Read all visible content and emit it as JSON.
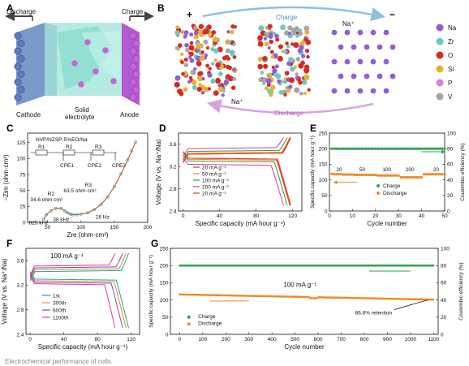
{
  "panels": {
    "A": {
      "letter": "A",
      "discharge": "Discharge",
      "charge": "Charge",
      "cathode": "Cathode",
      "solid": "Solid",
      "electrolyte": "electrolyte",
      "anode": "Anode"
    },
    "B": {
      "letter": "B",
      "plus": "+",
      "minus": "−",
      "charge": "Charge",
      "na_top": "Na⁺",
      "na_bottom": "Na⁺",
      "discharge": "Discharge",
      "legend": [
        {
          "label": "Na",
          "color": "#8e5fd6"
        },
        {
          "label": "Zr",
          "color": "#6cc8c8"
        },
        {
          "label": "O",
          "color": "#d82a1e"
        },
        {
          "label": "Si",
          "color": "#e8b22c"
        },
        {
          "label": "P",
          "color": "#e27ae0"
        },
        {
          "label": "V",
          "color": "#a6a6a6"
        }
      ]
    },
    "C": {
      "letter": "C",
      "title": "NVP/NZSP-5%EO/Na",
      "r1": "R1",
      "r2": "R2",
      "r3": "R3",
      "cpe1": "CPE1",
      "cpe2": "CPE2",
      "cpe3": "CPE3",
      "r2_label": "R2",
      "r2_value": "34.6 ohm·cm²",
      "r3_label": "R3",
      "r3_value": "63.5 ohm·cm²",
      "f1": "825 kHz",
      "f2": "38 kHz",
      "f3": "26 Hz",
      "ylabel": "−Zim (ohm·cm²)",
      "xlabel": "Zre (ohm·cm²)",
      "xticks": [
        "50",
        "100",
        "150",
        "200"
      ],
      "yticks": [
        "0",
        "25",
        "50",
        "75",
        "100",
        "125"
      ]
    },
    "D": {
      "letter": "D",
      "ylabel": "Voltage (V vs. Na⁺/Na)",
      "xlabel": "Specific capacity (mA hour g⁻¹)",
      "xticks": [
        "0",
        "40",
        "80",
        "120"
      ],
      "yticks": [
        "2.4",
        "2.8",
        "3.2",
        "3.6"
      ]
    },
    "E": {
      "letter": "E",
      "ylabel_left": "Specific capacity (mA hour g⁻¹)",
      "ylabel_right": "Coulombic efficiency (%)",
      "xlabel": "Cycle number",
      "charge": "Charge",
      "discharge": "Discharge",
      "xticks": [
        "0",
        "10",
        "20",
        "30",
        "40",
        "50"
      ],
      "yticks_left": [
        "0",
        "50",
        "100",
        "150",
        "200",
        "250"
      ],
      "yticks_right": [
        "0",
        "20",
        "40",
        "60",
        "80",
        "100"
      ],
      "rate_labels": [
        "20",
        "50",
        "100",
        "200",
        "20"
      ]
    },
    "F": {
      "letter": "F",
      "ylabel": "Voltage (V vs. Na⁺/Na)",
      "xlabel": "Specific capacity (mA hour g⁻¹)",
      "rate": "100 mA g⁻¹",
      "xticks": [
        "0",
        "40",
        "80",
        "120"
      ],
      "yticks": [
        "2.4",
        "2.8",
        "3.2",
        "3.6"
      ]
    },
    "G": {
      "letter": "G",
      "ylabel_left": "Specific capacity (mA hour g⁻¹)",
      "ylabel_right": "Coulombic efficiency (%)",
      "xlabel": "Cycle number",
      "rate": "100 mA g⁻¹",
      "retention": "86.8% retention",
      "charge": "Charge",
      "discharge": "Discharge",
      "xticks": [
        "0",
        "100",
        "200",
        "300",
        "400",
        "500",
        "600",
        "700",
        "800",
        "900",
        "1000",
        "1100"
      ],
      "yticks_left": [
        "0",
        "50",
        "100",
        "150",
        "200",
        "250"
      ],
      "yticks_right": [
        "0",
        "20",
        "40",
        "60",
        "80",
        "100"
      ]
    }
  },
  "caption": "Electrochemical performance of cells.",
  "chart_data": [
    {
      "type": "scatter",
      "panel": "C",
      "title": "NVP/NZSP-5%EO/Na",
      "xlabel": "Zre (ohm·cm²)",
      "ylabel": "−Zim (ohm·cm²)",
      "xlim": [
        20,
        200
      ],
      "ylim": [
        0,
        140
      ],
      "series": [
        {
          "values_x": [
            44,
            48,
            55,
            62,
            70,
            76,
            80,
            84,
            88,
            94,
            100,
            110,
            120,
            130,
            140,
            150,
            160,
            170,
            176,
            182
          ],
          "values_y": [
            5,
            12,
            18,
            22,
            22,
            18,
            15,
            13,
            12,
            12,
            13,
            15,
            20,
            28,
            40,
            56,
            76,
            98,
            112,
            126
          ]
        }
      ]
    },
    {
      "type": "line",
      "panel": "D",
      "xlabel": "Specific capacity (mA hour g⁻¹)",
      "ylabel": "Voltage (V vs. Na⁺/Na)",
      "xlim": [
        -5,
        130
      ],
      "ylim": [
        2.4,
        3.8
      ],
      "series": [
        {
          "name": "20 mA g⁻¹",
          "color": "#e0381e",
          "capacity": 118,
          "charge_v": 3.42,
          "discharge_v": 3.35
        },
        {
          "name": "50 mA g⁻¹",
          "color": "#f08a24",
          "capacity": 117,
          "charge_v": 3.44,
          "discharge_v": 3.33
        },
        {
          "name": "100 mA g⁻¹",
          "color": "#33a02c",
          "capacity": 114,
          "charge_v": 3.47,
          "discharge_v": 3.3
        },
        {
          "name": "200 mA g⁻¹",
          "color": "#d23cb4",
          "capacity": 110,
          "charge_v": 3.52,
          "discharge_v": 3.24
        },
        {
          "name": "20 mA g⁻¹",
          "color": "#e0381e",
          "capacity": 117,
          "charge_v": 3.42,
          "discharge_v": 3.35
        }
      ]
    },
    {
      "type": "scatter",
      "panel": "E",
      "xlabel": "Cycle number",
      "ylabel": "Specific capacity (mA hour g⁻¹)",
      "xlim": [
        0,
        50
      ],
      "ylim": [
        0,
        250
      ],
      "series": [
        {
          "name": "Charge",
          "color": "#2ea44f",
          "values": [
            200,
            200,
            200,
            200,
            200,
            200,
            200,
            200,
            200,
            200
          ]
        },
        {
          "name": "Discharge",
          "color": "#f08a24",
          "values": [
            119,
            118,
            118,
            118,
            118,
            117,
            117,
            117,
            117,
            117,
            116,
            116,
            116,
            116,
            116,
            116,
            116,
            116,
            116,
            116,
            114,
            114,
            114,
            114,
            114,
            114,
            114,
            114,
            114,
            114,
            108,
            108,
            108,
            108,
            108,
            108,
            108,
            108,
            108,
            108,
            118,
            118,
            118,
            118,
            118,
            118,
            118,
            118,
            118,
            118
          ]
        }
      ]
    },
    {
      "type": "line",
      "panel": "F",
      "xlabel": "Specific capacity (mA hour g⁻¹)",
      "ylabel": "Voltage (V vs. Na⁺/Na)",
      "xlim": [
        -5,
        130
      ],
      "ylim": [
        2.4,
        3.8
      ],
      "series": [
        {
          "name": "1st",
          "color": "#1aa6a0",
          "capacity": 117
        },
        {
          "name": "300th",
          "color": "#e88a1a",
          "capacity": 114
        },
        {
          "name": "600th",
          "color": "#7a4ac8",
          "capacity": 110
        },
        {
          "name": "1100th",
          "color": "#e03aa6",
          "capacity": 101
        }
      ]
    },
    {
      "type": "scatter",
      "panel": "G",
      "xlabel": "Cycle number",
      "ylabel": "Specific capacity (mA hour g⁻¹)",
      "xlim": [
        -40,
        1120
      ],
      "ylim": [
        0,
        250
      ],
      "series": [
        {
          "name": "Charge",
          "color": "#2ea44f",
          "start": 200,
          "end": 200
        },
        {
          "name": "Discharge",
          "color": "#f08a24",
          "start": 116,
          "end": 101
        }
      ]
    }
  ]
}
